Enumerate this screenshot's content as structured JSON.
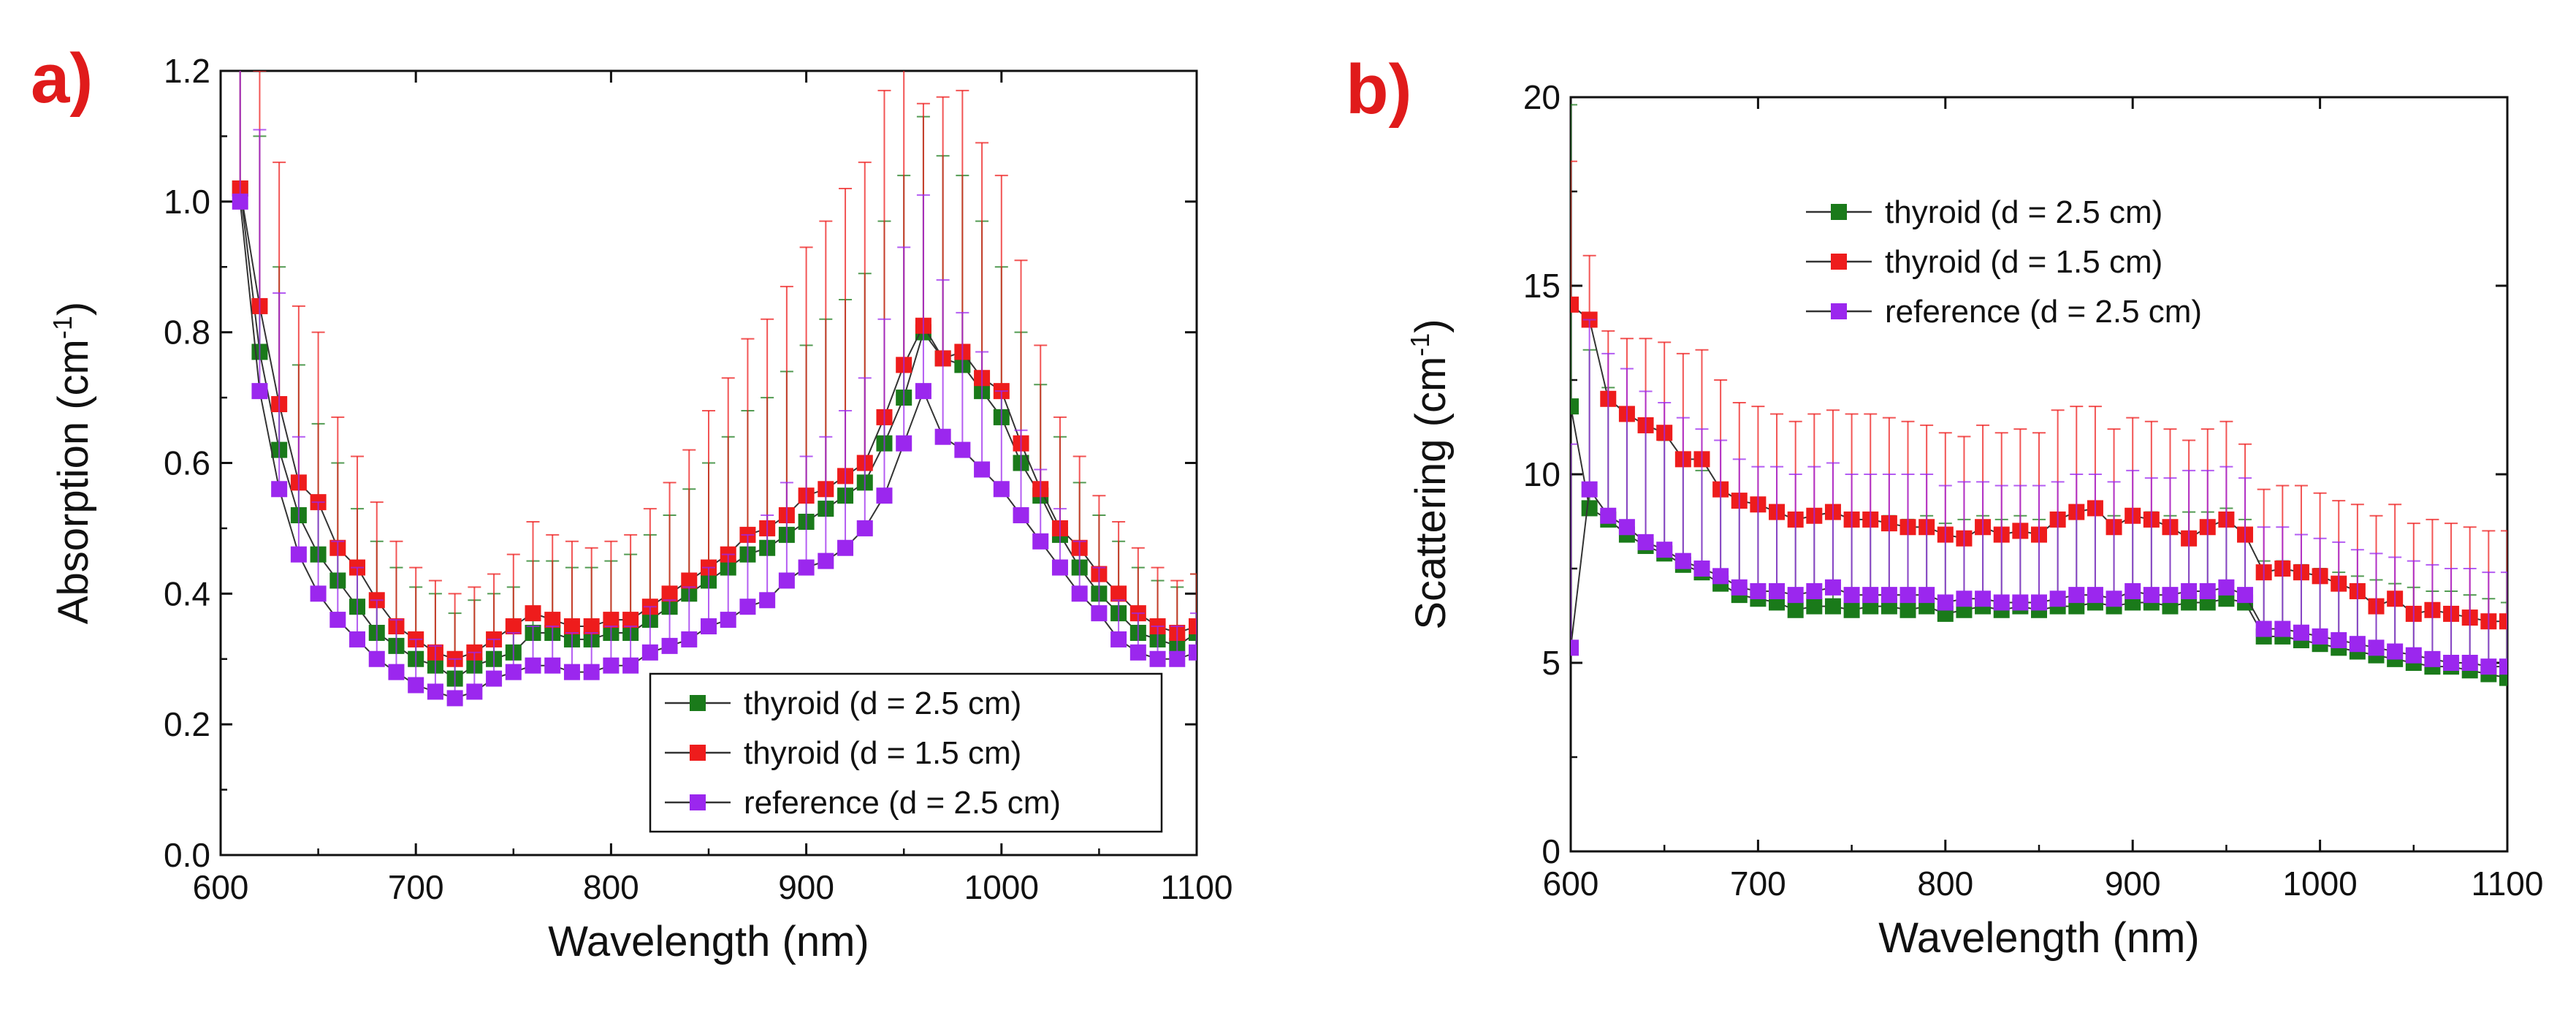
{
  "chart_data": [
    {
      "panel": "a)",
      "type": "line",
      "xlabel": "Wavelength (nm)",
      "ylabel": "Absorption (cm",
      "ylabel_sup": "-1",
      "ylabel_suffix": ")",
      "xlim": [
        600,
        1100
      ],
      "ylim": [
        0,
        1.2
      ],
      "xticks": [
        600,
        700,
        800,
        900,
        1000,
        1100
      ],
      "yticks": [
        0.0,
        0.2,
        0.4,
        0.6,
        0.8,
        1.0,
        1.2
      ],
      "ytick_labels": [
        "0.0",
        "0.2",
        "0.4",
        "0.6",
        "0.8",
        "1.0",
        "1.2"
      ],
      "legend_position": "bottom-right",
      "x": [
        610,
        620,
        630,
        640,
        650,
        660,
        670,
        680,
        690,
        700,
        710,
        720,
        730,
        740,
        750,
        760,
        770,
        780,
        790,
        800,
        810,
        820,
        830,
        840,
        850,
        860,
        870,
        880,
        890,
        900,
        910,
        920,
        930,
        940,
        950,
        960,
        970,
        980,
        990,
        1000,
        1010,
        1020,
        1030,
        1040,
        1050,
        1060,
        1070,
        1080,
        1090,
        1100
      ],
      "series": [
        {
          "name": "thyroid (d = 2.5 cm)",
          "color": "#1a7a1a",
          "values": [
            1.02,
            0.77,
            0.62,
            0.52,
            0.46,
            0.42,
            0.38,
            0.34,
            0.32,
            0.3,
            0.29,
            0.27,
            0.29,
            0.3,
            0.31,
            0.34,
            0.34,
            0.33,
            0.33,
            0.34,
            0.34,
            0.36,
            0.38,
            0.4,
            0.42,
            0.44,
            0.46,
            0.47,
            0.49,
            0.51,
            0.53,
            0.55,
            0.57,
            0.63,
            0.7,
            0.8,
            0.76,
            0.75,
            0.71,
            0.67,
            0.6,
            0.55,
            0.49,
            0.44,
            0.4,
            0.37,
            0.34,
            0.33,
            0.32,
            0.34
          ],
          "errors": [
            0.7,
            0.33,
            0.28,
            0.23,
            0.2,
            0.18,
            0.15,
            0.14,
            0.12,
            0.11,
            0.11,
            0.1,
            0.1,
            0.1,
            0.1,
            0.11,
            0.11,
            0.11,
            0.11,
            0.11,
            0.12,
            0.13,
            0.14,
            0.16,
            0.18,
            0.2,
            0.22,
            0.23,
            0.25,
            0.27,
            0.29,
            0.3,
            0.32,
            0.34,
            0.34,
            0.33,
            0.31,
            0.29,
            0.26,
            0.23,
            0.2,
            0.17,
            0.15,
            0.13,
            0.12,
            0.11,
            0.1,
            0.09,
            0.09,
            0.09
          ]
        },
        {
          "name": "thyroid (d = 1.5 cm)",
          "color": "#ee1c1c",
          "values": [
            1.02,
            0.84,
            0.69,
            0.57,
            0.54,
            0.47,
            0.44,
            0.39,
            0.35,
            0.33,
            0.31,
            0.3,
            0.31,
            0.33,
            0.35,
            0.37,
            0.36,
            0.35,
            0.35,
            0.36,
            0.36,
            0.38,
            0.4,
            0.42,
            0.44,
            0.46,
            0.49,
            0.5,
            0.52,
            0.55,
            0.56,
            0.58,
            0.6,
            0.67,
            0.75,
            0.81,
            0.76,
            0.77,
            0.73,
            0.71,
            0.63,
            0.56,
            0.5,
            0.47,
            0.43,
            0.4,
            0.37,
            0.35,
            0.34,
            0.35
          ],
          "errors": [
            0.7,
            0.36,
            0.37,
            0.27,
            0.26,
            0.2,
            0.17,
            0.15,
            0.13,
            0.11,
            0.11,
            0.1,
            0.1,
            0.1,
            0.11,
            0.14,
            0.13,
            0.13,
            0.12,
            0.12,
            0.13,
            0.15,
            0.17,
            0.2,
            0.24,
            0.27,
            0.3,
            0.32,
            0.35,
            0.38,
            0.41,
            0.44,
            0.46,
            0.5,
            0.52,
            0.34,
            0.4,
            0.4,
            0.36,
            0.33,
            0.28,
            0.22,
            0.17,
            0.14,
            0.12,
            0.11,
            0.1,
            0.09,
            0.08,
            0.08
          ]
        },
        {
          "name": "reference (d = 2.5 cm)",
          "color": "#9b27ee",
          "values": [
            1.0,
            0.71,
            0.56,
            0.46,
            0.4,
            0.36,
            0.33,
            0.3,
            0.28,
            0.26,
            0.25,
            0.24,
            0.25,
            0.27,
            0.28,
            0.29,
            0.29,
            0.28,
            0.28,
            0.29,
            0.29,
            0.31,
            0.32,
            0.33,
            0.35,
            0.36,
            0.38,
            0.39,
            0.42,
            0.44,
            0.45,
            0.47,
            0.5,
            0.55,
            0.63,
            0.71,
            0.64,
            0.62,
            0.59,
            0.56,
            0.52,
            0.48,
            0.44,
            0.4,
            0.37,
            0.33,
            0.31,
            0.3,
            0.3,
            0.31
          ],
          "errors": [
            0.66,
            0.4,
            0.3,
            0.18,
            0.14,
            0.12,
            0.11,
            0.09,
            0.08,
            0.07,
            0.07,
            0.06,
            0.06,
            0.06,
            0.06,
            0.06,
            0.06,
            0.06,
            0.06,
            0.06,
            0.06,
            0.07,
            0.07,
            0.08,
            0.09,
            0.1,
            0.11,
            0.13,
            0.15,
            0.17,
            0.19,
            0.21,
            0.23,
            0.27,
            0.3,
            0.3,
            0.24,
            0.21,
            0.18,
            0.15,
            0.13,
            0.11,
            0.09,
            0.08,
            0.07,
            0.06,
            0.06,
            0.05,
            0.05,
            0.06
          ]
        }
      ]
    },
    {
      "panel": "b)",
      "type": "line",
      "xlabel": "Wavelength (nm)",
      "ylabel": "Scattering (cm",
      "ylabel_sup": "-1",
      "ylabel_suffix": ")",
      "xlim": [
        600,
        1100
      ],
      "ylim": [
        0,
        20
      ],
      "xticks": [
        600,
        700,
        800,
        900,
        1000,
        1100
      ],
      "yticks": [
        0,
        5,
        10,
        15,
        20
      ],
      "ytick_labels": [
        "0",
        "5",
        "10",
        "15",
        "20"
      ],
      "legend_position": "top-left",
      "x": [
        600,
        610,
        620,
        630,
        640,
        650,
        660,
        670,
        680,
        690,
        700,
        710,
        720,
        730,
        740,
        750,
        760,
        770,
        780,
        790,
        800,
        810,
        820,
        830,
        840,
        850,
        860,
        870,
        880,
        890,
        900,
        910,
        920,
        930,
        940,
        950,
        960,
        970,
        980,
        990,
        1000,
        1010,
        1020,
        1030,
        1040,
        1050,
        1060,
        1070,
        1080,
        1090,
        1100
      ],
      "series": [
        {
          "name": "thyroid (d = 2.5 cm)",
          "color": "#1a7a1a",
          "values": [
            11.8,
            9.1,
            8.8,
            8.4,
            8.1,
            7.9,
            7.6,
            7.4,
            7.1,
            6.8,
            6.7,
            6.6,
            6.4,
            6.5,
            6.5,
            6.4,
            6.5,
            6.5,
            6.4,
            6.5,
            6.3,
            6.4,
            6.5,
            6.4,
            6.5,
            6.4,
            6.5,
            6.5,
            6.6,
            6.5,
            6.6,
            6.6,
            6.5,
            6.6,
            6.6,
            6.7,
            6.6,
            5.7,
            5.7,
            5.6,
            5.5,
            5.4,
            5.3,
            5.2,
            5.1,
            5.0,
            4.9,
            4.9,
            4.8,
            4.7,
            4.6
          ],
          "errors": [
            8.0,
            4.2,
            3.5,
            3.2,
            3.1,
            3.0,
            2.8,
            2.7,
            2.5,
            2.4,
            2.4,
            2.4,
            2.3,
            2.4,
            2.4,
            2.4,
            2.4,
            2.4,
            2.4,
            2.4,
            2.4,
            2.4,
            2.4,
            2.4,
            2.4,
            2.4,
            2.4,
            2.4,
            2.4,
            2.4,
            2.4,
            2.4,
            2.4,
            2.4,
            2.4,
            2.4,
            2.2,
            2.0,
            2.0,
            2.0,
            2.0,
            2.0,
            2.0,
            2.0,
            2.0,
            2.0,
            2.0,
            2.0,
            2.0,
            2.0,
            2.0
          ]
        },
        {
          "name": "thyroid (d = 1.5 cm)",
          "color": "#ee1c1c",
          "values": [
            14.5,
            14.1,
            12.0,
            11.6,
            11.3,
            11.1,
            10.4,
            10.4,
            9.6,
            9.3,
            9.2,
            9.0,
            8.8,
            8.9,
            9.0,
            8.8,
            8.8,
            8.7,
            8.6,
            8.6,
            8.4,
            8.3,
            8.6,
            8.4,
            8.5,
            8.4,
            8.8,
            9.0,
            9.1,
            8.6,
            8.9,
            8.8,
            8.6,
            8.3,
            8.6,
            8.8,
            8.4,
            7.4,
            7.5,
            7.4,
            7.3,
            7.1,
            6.9,
            6.5,
            6.7,
            6.3,
            6.4,
            6.3,
            6.2,
            6.1,
            6.1
          ],
          "errors": [
            3.8,
            1.7,
            1.8,
            2.0,
            2.3,
            2.4,
            2.8,
            2.9,
            2.9,
            2.6,
            2.6,
            2.6,
            2.6,
            2.7,
            2.7,
            2.8,
            2.8,
            2.8,
            2.8,
            2.7,
            2.7,
            2.7,
            2.7,
            2.7,
            2.7,
            2.7,
            2.9,
            2.8,
            2.7,
            2.6,
            2.6,
            2.6,
            2.6,
            2.6,
            2.6,
            2.6,
            2.4,
            2.2,
            2.2,
            2.3,
            2.2,
            2.2,
            2.3,
            2.4,
            2.5,
            2.4,
            2.4,
            2.4,
            2.4,
            2.4,
            2.4
          ]
        },
        {
          "name": "reference (d = 2.5 cm)",
          "color": "#9b27ee",
          "values": [
            5.4,
            9.6,
            8.9,
            8.6,
            8.2,
            8.0,
            7.7,
            7.5,
            7.3,
            7.0,
            6.9,
            6.9,
            6.8,
            6.9,
            7.0,
            6.8,
            6.8,
            6.8,
            6.8,
            6.8,
            6.6,
            6.7,
            6.7,
            6.6,
            6.6,
            6.6,
            6.7,
            6.8,
            6.8,
            6.7,
            6.9,
            6.8,
            6.8,
            6.9,
            6.9,
            7.0,
            6.8,
            5.9,
            5.9,
            5.8,
            5.7,
            5.6,
            5.5,
            5.4,
            5.3,
            5.2,
            5.1,
            5.0,
            5.0,
            4.9,
            4.9
          ],
          "errors": [
            5.4,
            4.5,
            4.3,
            4.2,
            4.0,
            3.9,
            3.8,
            3.7,
            3.6,
            3.4,
            3.3,
            3.3,
            3.2,
            3.3,
            3.3,
            3.2,
            3.2,
            3.2,
            3.2,
            3.2,
            3.1,
            3.1,
            3.1,
            3.1,
            3.1,
            3.1,
            3.1,
            3.2,
            3.2,
            3.1,
            3.2,
            3.1,
            3.1,
            3.2,
            3.2,
            3.2,
            3.1,
            2.7,
            2.7,
            2.6,
            2.6,
            2.6,
            2.5,
            2.5,
            2.5,
            2.5,
            2.5,
            2.5,
            2.5,
            2.5,
            2.5
          ]
        }
      ]
    }
  ]
}
